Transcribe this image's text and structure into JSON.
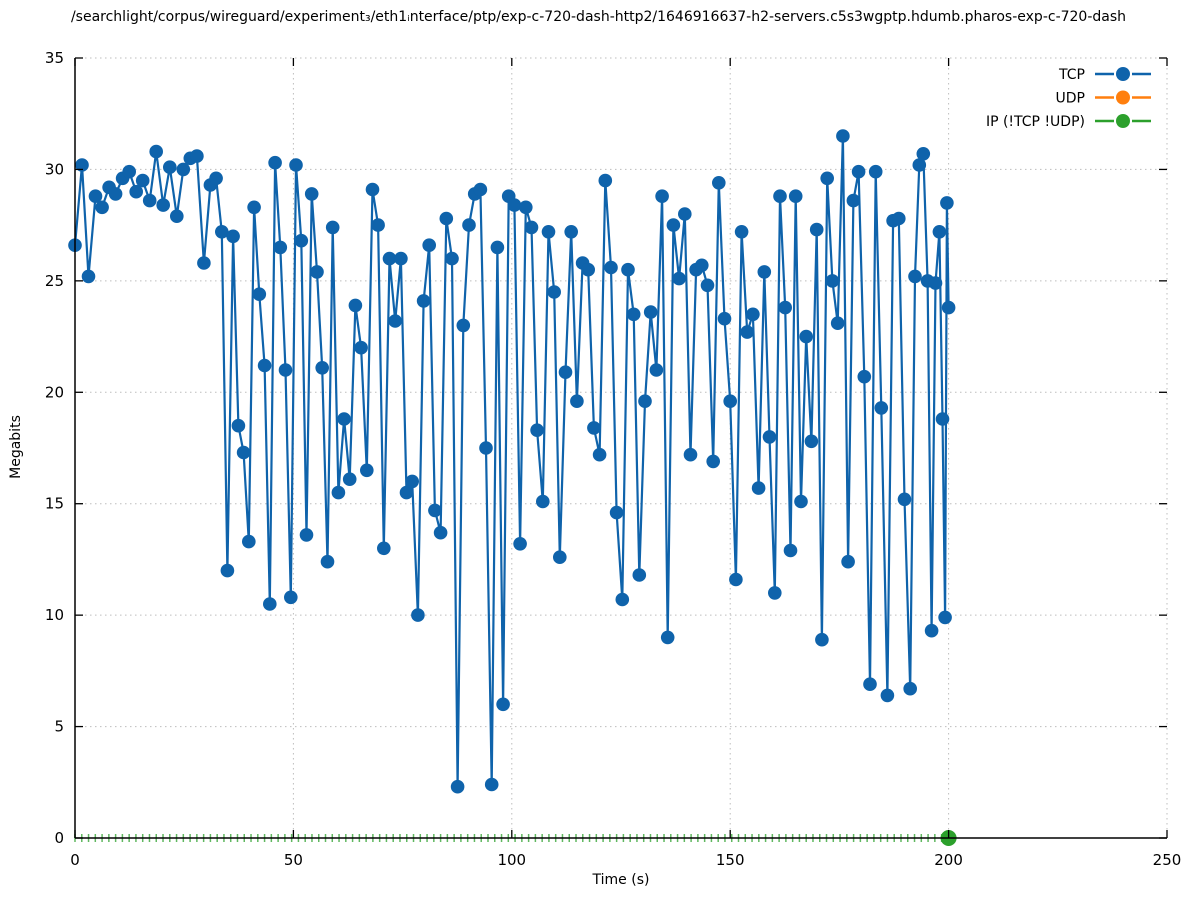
{
  "chart_data": {
    "type": "line",
    "title": "/searchlight/corpus/wireguard/experiment₃/eth1ᵢnterface/ptp/exp-c-720-dash-http2/1646916637-h2-servers.c5s3wgptp.hdumb.pharos-exp-c-720-dash",
    "xlabel": "Time (s)",
    "ylabel": "Megabits",
    "xlim": [
      0,
      250
    ],
    "ylim": [
      0,
      35
    ],
    "xticks": [
      0,
      50,
      100,
      150,
      200,
      250
    ],
    "yticks": [
      0,
      5,
      10,
      15,
      20,
      25,
      30,
      35
    ],
    "grid": true,
    "grid_color": "#bdbdbd",
    "axis_color": "#000000",
    "legend_position": "top-right",
    "series": [
      {
        "name": "TCP",
        "color": "#0f63ab",
        "style": "linespoints",
        "points": [
          [
            0,
            26.6
          ],
          [
            1.6,
            30.2
          ],
          [
            3.1,
            25.2
          ],
          [
            4.7,
            28.8
          ],
          [
            6.2,
            28.3
          ],
          [
            7.8,
            29.2
          ],
          [
            9.3,
            28.9
          ],
          [
            10.9,
            29.6
          ],
          [
            12.4,
            29.9
          ],
          [
            14,
            29.0
          ],
          [
            15.5,
            29.5
          ],
          [
            17.1,
            28.6
          ],
          [
            18.6,
            30.8
          ],
          [
            20.2,
            28.4
          ],
          [
            21.7,
            30.1
          ],
          [
            23.3,
            27.9
          ],
          [
            24.8,
            30.0
          ],
          [
            26.4,
            30.5
          ],
          [
            27.9,
            30.6
          ],
          [
            29.5,
            25.8
          ],
          [
            31,
            29.3
          ],
          [
            32.3,
            29.6
          ],
          [
            33.6,
            27.2
          ],
          [
            34.9,
            12.0
          ],
          [
            36.2,
            27.0
          ],
          [
            37.4,
            18.5
          ],
          [
            38.6,
            17.3
          ],
          [
            39.8,
            13.3
          ],
          [
            41,
            28.3
          ],
          [
            42.2,
            24.4
          ],
          [
            43.4,
            21.2
          ],
          [
            44.6,
            10.5
          ],
          [
            45.8,
            30.3
          ],
          [
            47,
            26.5
          ],
          [
            48.2,
            21.0
          ],
          [
            49.4,
            10.8
          ],
          [
            50.6,
            30.2
          ],
          [
            51.8,
            26.8
          ],
          [
            53,
            13.6
          ],
          [
            54.2,
            28.9
          ],
          [
            55.4,
            25.4
          ],
          [
            56.6,
            21.1
          ],
          [
            57.8,
            12.4
          ],
          [
            59,
            27.4
          ],
          [
            60.3,
            15.5
          ],
          [
            61.6,
            18.8
          ],
          [
            62.9,
            16.1
          ],
          [
            64.2,
            23.9
          ],
          [
            65.5,
            22.0
          ],
          [
            66.8,
            16.5
          ],
          [
            68.1,
            29.1
          ],
          [
            69.4,
            27.5
          ],
          [
            70.7,
            13.0
          ],
          [
            72,
            26.0
          ],
          [
            73.3,
            23.2
          ],
          [
            74.6,
            26.0
          ],
          [
            75.9,
            15.5
          ],
          [
            77.2,
            16.0
          ],
          [
            78.5,
            10.0
          ],
          [
            79.8,
            24.1
          ],
          [
            81.1,
            26.6
          ],
          [
            82.4,
            14.7
          ],
          [
            83.7,
            13.7
          ],
          [
            85,
            27.8
          ],
          [
            86.3,
            26.0
          ],
          [
            87.6,
            2.3
          ],
          [
            88.9,
            23.0
          ],
          [
            90.2,
            27.5
          ],
          [
            91.5,
            28.9
          ],
          [
            92.8,
            29.1
          ],
          [
            94.1,
            17.5
          ],
          [
            95.4,
            2.4
          ],
          [
            96.7,
            26.5
          ],
          [
            98,
            6.0
          ],
          [
            99.3,
            28.8
          ],
          [
            100.6,
            28.4
          ],
          [
            101.9,
            13.2
          ],
          [
            103.2,
            28.3
          ],
          [
            104.5,
            27.4
          ],
          [
            105.8,
            18.3
          ],
          [
            107.1,
            15.1
          ],
          [
            108.4,
            27.2
          ],
          [
            109.7,
            24.5
          ],
          [
            111,
            12.6
          ],
          [
            112.3,
            20.9
          ],
          [
            113.6,
            27.2
          ],
          [
            114.9,
            19.6
          ],
          [
            116.2,
            25.8
          ],
          [
            117.5,
            25.5
          ],
          [
            118.8,
            18.4
          ],
          [
            120.1,
            17.2
          ],
          [
            121.4,
            29.5
          ],
          [
            122.7,
            25.6
          ],
          [
            124,
            14.6
          ],
          [
            125.3,
            10.7
          ],
          [
            126.6,
            25.5
          ],
          [
            127.9,
            23.5
          ],
          [
            129.2,
            11.8
          ],
          [
            130.5,
            19.6
          ],
          [
            131.8,
            23.6
          ],
          [
            133.1,
            21.0
          ],
          [
            134.4,
            28.8
          ],
          [
            135.7,
            9.0
          ],
          [
            137,
            27.5
          ],
          [
            138.3,
            25.1
          ],
          [
            139.6,
            28.0
          ],
          [
            140.9,
            17.2
          ],
          [
            142.2,
            25.5
          ],
          [
            143.5,
            25.7
          ],
          [
            144.8,
            24.8
          ],
          [
            146.1,
            16.9
          ],
          [
            147.4,
            29.4
          ],
          [
            148.7,
            23.3
          ],
          [
            150,
            19.6
          ],
          [
            151.3,
            11.6
          ],
          [
            152.6,
            27.2
          ],
          [
            153.9,
            22.7
          ],
          [
            155.2,
            23.5
          ],
          [
            156.5,
            15.7
          ],
          [
            157.8,
            25.4
          ],
          [
            159,
            18.0
          ],
          [
            160.2,
            11.0
          ],
          [
            161.4,
            28.8
          ],
          [
            162.6,
            23.8
          ],
          [
            163.8,
            12.9
          ],
          [
            165,
            28.8
          ],
          [
            166.2,
            15.1
          ],
          [
            167.4,
            22.5
          ],
          [
            168.6,
            17.8
          ],
          [
            169.8,
            27.3
          ],
          [
            171,
            8.9
          ],
          [
            172.2,
            29.6
          ],
          [
            173.4,
            25.0
          ],
          [
            174.6,
            23.1
          ],
          [
            175.8,
            31.5
          ],
          [
            177,
            12.4
          ],
          [
            178.2,
            28.6
          ],
          [
            179.4,
            29.9
          ],
          [
            180.7,
            20.7
          ],
          [
            182,
            6.9
          ],
          [
            183.3,
            29.9
          ],
          [
            184.6,
            19.3
          ],
          [
            186,
            6.4
          ],
          [
            187.3,
            27.7
          ],
          [
            188.6,
            27.8
          ],
          [
            189.9,
            15.2
          ],
          [
            191.2,
            6.7
          ],
          [
            192.3,
            25.2
          ],
          [
            193.3,
            30.2
          ],
          [
            194.2,
            30.7
          ],
          [
            195.2,
            25.0
          ],
          [
            196.1,
            9.3
          ],
          [
            197,
            24.9
          ],
          [
            197.9,
            27.2
          ],
          [
            198.6,
            18.8
          ],
          [
            199.2,
            9.9
          ],
          [
            199.6,
            28.5
          ],
          [
            200,
            23.8
          ]
        ]
      },
      {
        "name": "UDP",
        "color": "#ff7f0e",
        "style": "linespoints",
        "points": []
      },
      {
        "name": "IP (!TCP  !UDP)",
        "color": "#2ca02c",
        "style": "linespoints",
        "points": [
          [
            200,
            0
          ]
        ],
        "baseline_marks": {
          "t_start": 0,
          "t_end": 198.5,
          "step": 1.55,
          "value": 0
        }
      }
    ]
  }
}
